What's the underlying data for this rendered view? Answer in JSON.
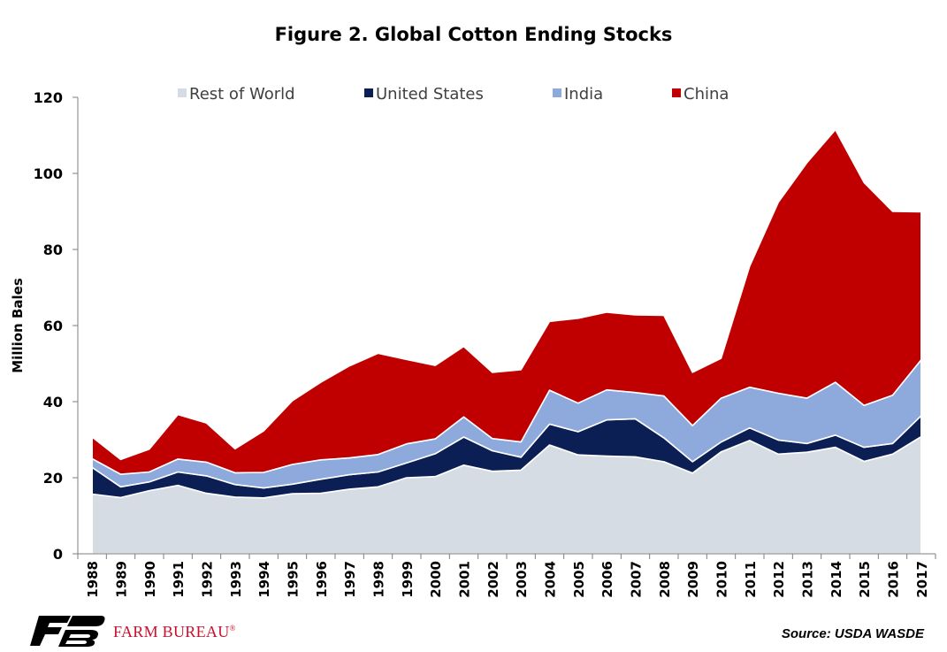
{
  "chart_data": {
    "type": "area",
    "stacked": true,
    "title": "Figure 2. Global Cotton Ending Stocks",
    "ylabel": "Million Bales",
    "xlabel": "",
    "ylim": [
      0,
      120
    ],
    "yticks": [
      0,
      20,
      40,
      60,
      80,
      100,
      120
    ],
    "grid": false,
    "legend_position": "top",
    "categories": [
      "1988",
      "1989",
      "1990",
      "1991",
      "1992",
      "1993",
      "1994",
      "1995",
      "1996",
      "1997",
      "1998",
      "1999",
      "2000",
      "2001",
      "2002",
      "2003",
      "2004",
      "2005",
      "2006",
      "2007",
      "2008",
      "2009",
      "2010",
      "2011",
      "2012",
      "2013",
      "2014",
      "2015",
      "2016",
      "2017"
    ],
    "series": [
      {
        "name": "Rest of World",
        "color": "#d6dce4",
        "values": [
          15.7,
          14.8,
          16.6,
          18.0,
          15.9,
          14.9,
          14.7,
          15.8,
          15.9,
          17.0,
          17.6,
          20.0,
          20.3,
          23.3,
          21.7,
          22.0,
          28.6,
          26.0,
          25.7,
          25.5,
          24.2,
          21.2,
          26.8,
          29.8,
          26.2,
          26.7,
          28.0,
          24.3,
          26.2,
          30.8
        ]
      },
      {
        "name": "United States",
        "color": "#0c1f55",
        "values": [
          7.0,
          2.8,
          2.3,
          3.5,
          4.6,
          3.3,
          2.6,
          2.5,
          3.7,
          3.8,
          3.9,
          3.9,
          6.0,
          7.4,
          5.4,
          3.4,
          5.5,
          6.1,
          9.5,
          10.0,
          6.3,
          3.0,
          2.6,
          3.3,
          3.7,
          2.3,
          3.2,
          3.7,
          2.8,
          5.5
        ]
      },
      {
        "name": "India",
        "color": "#8ea9db",
        "values": [
          2.3,
          3.3,
          2.6,
          3.4,
          3.6,
          3.1,
          4.1,
          5.2,
          5.1,
          4.4,
          4.6,
          5.0,
          3.9,
          5.3,
          3.2,
          4.0,
          8.9,
          7.5,
          7.9,
          6.9,
          11.0,
          9.5,
          11.5,
          10.7,
          12.3,
          11.9,
          13.9,
          11.0,
          12.7,
          14.7
        ]
      },
      {
        "name": "China",
        "color": "#c00000",
        "values": [
          5.7,
          3.9,
          6.0,
          11.7,
          10.3,
          6.3,
          10.9,
          16.7,
          20.4,
          24.2,
          26.6,
          22.2,
          19.3,
          18.5,
          17.4,
          19.0,
          18.1,
          22.3,
          20.4,
          20.4,
          21.2,
          14.0,
          10.5,
          31.8,
          50.2,
          61.9,
          66.4,
          58.6,
          48.3,
          38.9
        ]
      }
    ],
    "source": "Source: USDA WASDE"
  },
  "branding": {
    "logo_text": "FARM BUREAU",
    "logo_mark": "FB",
    "brand_color": "#c8102e",
    "mark_color": "#000000"
  }
}
